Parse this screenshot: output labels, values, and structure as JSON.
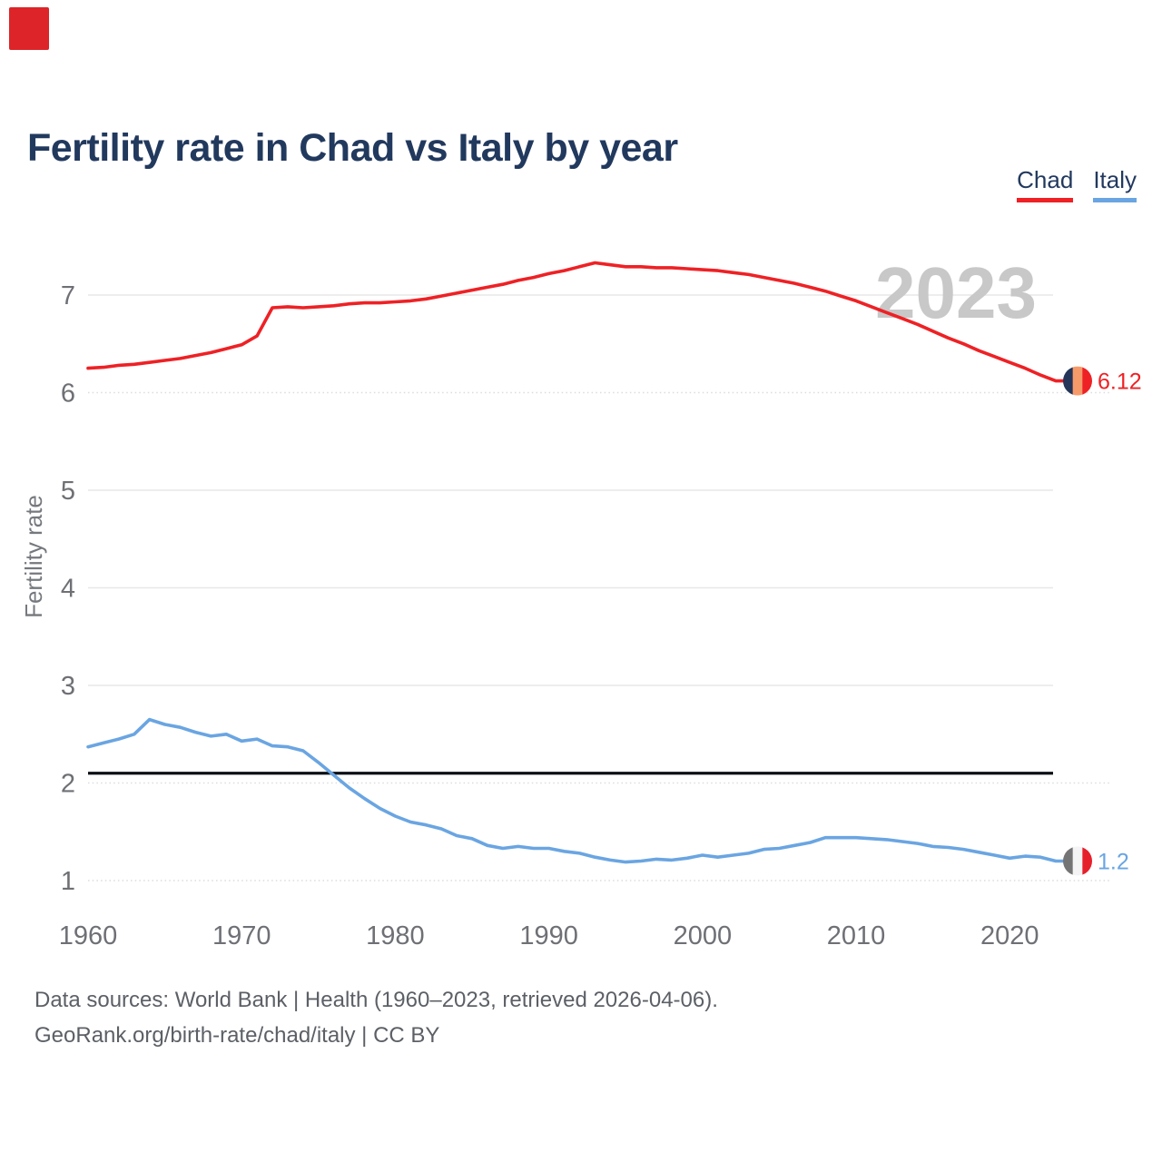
{
  "header": {
    "title": "Fertility rate in Chad vs Italy by year",
    "logo_color": "#dd2428"
  },
  "legend": [
    {
      "label": "Chad",
      "color": "#ee2125"
    },
    {
      "label": "Italy",
      "color": "#6aa5e2"
    }
  ],
  "footer": {
    "line1": "Data sources: World Bank | Health (1960–2023, retrieved 2026-04-06).",
    "line2": "GeoRank.org/birth-rate/chad/italy | CC BY"
  },
  "chart_data": {
    "type": "line",
    "title": "Fertility rate in Chad vs Italy by year",
    "xlabel": "",
    "ylabel": "Fertility rate",
    "x_range": [
      1960,
      2023
    ],
    "x_ticks": [
      1960,
      1970,
      1980,
      1990,
      2000,
      2010,
      2020
    ],
    "y_ticks": [
      1,
      2,
      3,
      4,
      5,
      6,
      7
    ],
    "dotted_y_ticks": [
      1,
      2,
      6
    ],
    "ylim": [
      0.7,
      7.6
    ],
    "grid": true,
    "legend_position": "top-right",
    "watermark": "2023",
    "reference_line": {
      "value": 2.1,
      "color": "#0c1016"
    },
    "axis_text_color": "#6e7075",
    "watermark_color": "#c8c8c8",
    "series": [
      {
        "name": "Chad",
        "color": "#ee2125",
        "end_label": "6.12",
        "end_value": 6.12,
        "flag_stripes": [
          "#253559",
          "#f79a6a",
          "#ee2125"
        ],
        "values": [
          6.25,
          6.26,
          6.28,
          6.29,
          6.31,
          6.33,
          6.35,
          6.38,
          6.41,
          6.45,
          6.49,
          6.58,
          6.87,
          6.88,
          6.87,
          6.88,
          6.89,
          6.91,
          6.92,
          6.92,
          6.93,
          6.94,
          6.96,
          6.99,
          7.02,
          7.05,
          7.08,
          7.11,
          7.15,
          7.18,
          7.22,
          7.25,
          7.29,
          7.33,
          7.31,
          7.29,
          7.29,
          7.28,
          7.28,
          7.27,
          7.26,
          7.25,
          7.23,
          7.21,
          7.18,
          7.15,
          7.12,
          7.08,
          7.04,
          6.99,
          6.94,
          6.88,
          6.82,
          6.76,
          6.7,
          6.63,
          6.56,
          6.5,
          6.43,
          6.37,
          6.31,
          6.25,
          6.18,
          6.12
        ]
      },
      {
        "name": "Italy",
        "color": "#6aa5e2",
        "end_label": "1.2",
        "end_value": 1.2,
        "flag_stripes": [
          "#747474",
          "#f4f4f4",
          "#e5202b"
        ],
        "values": [
          2.37,
          2.41,
          2.45,
          2.5,
          2.65,
          2.6,
          2.57,
          2.52,
          2.48,
          2.5,
          2.43,
          2.45,
          2.38,
          2.37,
          2.33,
          2.21,
          2.08,
          1.95,
          1.84,
          1.74,
          1.66,
          1.6,
          1.57,
          1.53,
          1.46,
          1.43,
          1.36,
          1.33,
          1.35,
          1.33,
          1.33,
          1.3,
          1.28,
          1.24,
          1.21,
          1.19,
          1.2,
          1.22,
          1.21,
          1.23,
          1.26,
          1.24,
          1.26,
          1.28,
          1.32,
          1.33,
          1.36,
          1.39,
          1.44,
          1.44,
          1.44,
          1.43,
          1.42,
          1.4,
          1.38,
          1.35,
          1.34,
          1.32,
          1.29,
          1.26,
          1.23,
          1.25,
          1.24,
          1.2
        ]
      }
    ]
  }
}
